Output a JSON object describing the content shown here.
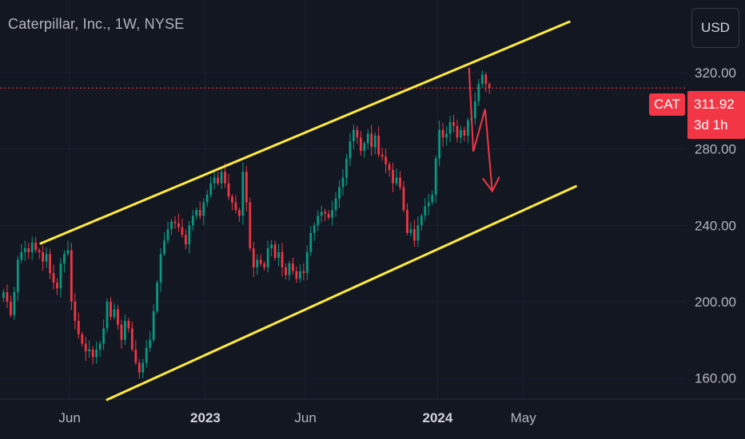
{
  "title": "Caterpillar, Inc., 1W, NYSE",
  "currency_button": "USD",
  "last_price": {
    "symbol": "CAT",
    "price": "311.92",
    "countdown": "3d 1h",
    "value": 311.92
  },
  "colors": {
    "background": "#131722",
    "up": "#089981",
    "down": "#f23645",
    "channel": "#ffeb3b",
    "arrow": "#f23645",
    "axis_text": "#b2b5be"
  },
  "chart_data": {
    "type": "candlestick",
    "ylim": [
      149,
      358
    ],
    "y_ticks": [
      {
        "value": 160,
        "label": "160.00"
      },
      {
        "value": 200,
        "label": "200.00"
      },
      {
        "value": 240,
        "label": "240.00"
      },
      {
        "value": 280,
        "label": "280.00"
      },
      {
        "value": 320,
        "label": "320.00"
      }
    ],
    "x_ticks": [
      {
        "week": 19.5,
        "label": "Jun",
        "bold": false
      },
      {
        "week": 57.5,
        "label": "2023",
        "bold": true
      },
      {
        "week": 85.5,
        "label": "Jun",
        "bold": false
      },
      {
        "week": 122.5,
        "label": "2024",
        "bold": true
      },
      {
        "week": 146.5,
        "label": "May",
        "bold": false
      }
    ],
    "x_range_weeks": [
      0,
      192
    ],
    "closes": [
      205,
      200,
      193,
      205,
      222,
      226,
      228,
      226,
      231,
      227,
      226,
      221,
      225,
      215,
      210,
      207,
      220,
      225,
      227,
      200,
      190,
      183,
      178,
      174,
      175,
      171,
      175,
      178,
      186,
      200,
      192,
      196,
      188,
      180,
      190,
      186,
      175,
      168,
      163,
      168,
      176,
      180,
      195,
      210,
      225,
      232,
      238,
      242,
      241,
      239,
      235,
      230,
      240,
      245,
      248,
      245,
      252,
      256,
      262,
      265,
      262,
      268,
      262,
      255,
      252,
      248,
      245,
      268,
      252,
      228,
      218,
      222,
      220,
      218,
      228,
      230,
      223,
      226,
      218,
      214,
      220,
      216,
      212,
      216,
      215,
      226,
      236,
      240,
      245,
      247,
      246,
      244,
      248,
      254,
      260,
      265,
      275,
      284,
      290,
      286,
      279,
      283,
      288,
      281,
      287,
      277,
      276,
      272,
      269,
      262,
      265,
      260,
      248,
      236,
      238,
      232,
      240,
      245,
      250,
      252,
      256,
      275,
      290,
      286,
      288,
      294,
      292,
      286,
      290,
      287,
      295,
      296,
      305,
      314,
      319,
      314,
      311.92
    ],
    "channel_upper": {
      "start": [
        11.4,
        230.5
      ],
      "end": [
        159.4,
        346.6
      ]
    },
    "channel_lower": {
      "start": [
        30.0,
        148.7
      ],
      "end": [
        161.2,
        260.4
      ]
    },
    "projection_arrow": [
      [
        131.3,
        322.5
      ],
      [
        132.5,
        278.6
      ],
      [
        135.8,
        300.9
      ],
      [
        137.8,
        257.9
      ]
    ]
  }
}
